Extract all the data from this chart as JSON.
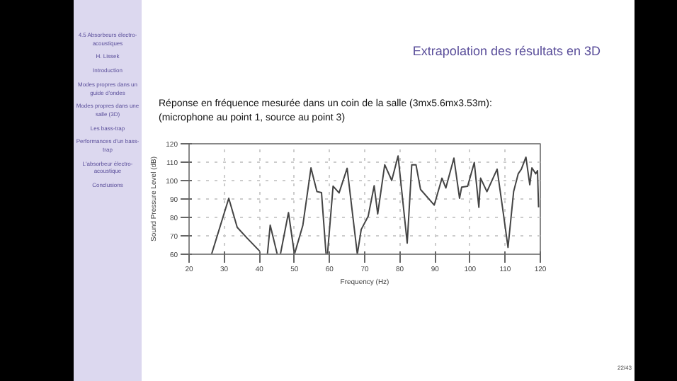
{
  "chart_data": {
    "type": "line",
    "title": "Extrapolation des résultats en 3D",
    "subtitle": "Réponse en fréquence mesurée dans un coin de la salle (3mx5.6mx3.53m):\n(microphone au point 1, source au point 3)",
    "xlabel": "Frequency (Hz)",
    "ylabel": "Sound Pressure Level (dB)",
    "annotations": [
      "4.5 Absorbeurs électro-acoustiques",
      "H. Lissek",
      "Introduction",
      "Modes propres dans un guide d'ondes",
      "Modes propres dans une salle (3D)",
      "Les bass-trap",
      "Performances d'un bass-trap",
      "L'absorbeur électro-acoustique",
      "Conclusions",
      "22/43"
    ],
    "xlim": [
      20,
      120
    ],
    "xticks": [
      20,
      30,
      40,
      50,
      60,
      70,
      80,
      90,
      100,
      110,
      120
    ],
    "ylim": [
      60,
      120
    ],
    "yticks": [
      60,
      70,
      80,
      90,
      100,
      110,
      120
    ],
    "grid": true,
    "line_style": "solid",
    "series": [
      {
        "color": "#444444",
        "x": [
          26.4,
          31.3,
          33.7,
          36.4,
          40.1,
          41.2,
          42.3,
          43.1,
          45.1,
          46,
          48.3,
          50,
          52.4,
          54.7,
          56.4,
          57.7,
          59,
          59.4,
          61,
          62.7,
          65,
          67.9,
          69,
          71,
          72.7,
          73.7,
          75.7,
          77.7,
          79.5,
          82.1,
          83.4,
          84.6,
          85.9,
          89.8,
          92,
          93.1,
          95.4,
          97,
          97.6,
          99.3,
          101.2,
          102.5,
          103,
          104.8,
          107.7,
          109.4,
          110.8,
          112.4,
          113.7,
          114.6,
          115.9,
          117,
          117.6,
          118.7,
          119.2,
          119.5
        ],
        "values": [
          60,
          90.4,
          74.6,
          69,
          61.7,
          null,
          60,
          75.8,
          60,
          60,
          82.6,
          60,
          75.8,
          106.9,
          94,
          93.5,
          60,
          60,
          97,
          93.3,
          106.7,
          60,
          73.4,
          80.7,
          97.2,
          81.9,
          108.6,
          100.1,
          113.4,
          66.1,
          108.6,
          108.6,
          95.2,
          86.7,
          101.3,
          96,
          112.2,
          90.4,
          96.4,
          96.9,
          109.8,
          85.5,
          101.3,
          94,
          106.2,
          83.1,
          63.7,
          94,
          103.7,
          106.2,
          112.7,
          97.7,
          106.9,
          103.7,
          105.4,
          85.5
        ]
      }
    ]
  }
}
